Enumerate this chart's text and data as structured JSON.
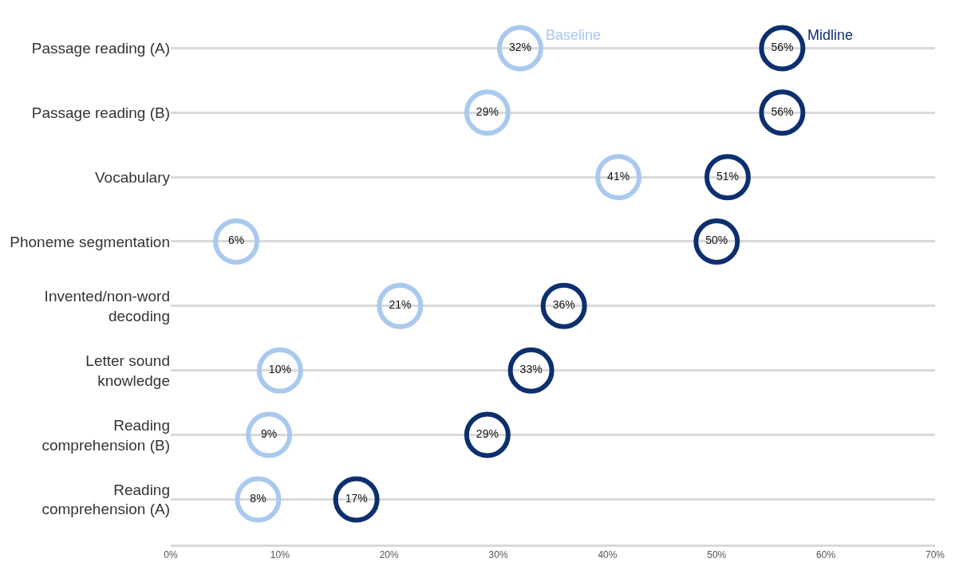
{
  "chart_data": {
    "type": "scatter",
    "orientation": "horizontal",
    "marker": "circle",
    "grid": "y",
    "legend": false,
    "categories": [
      "Passage reading (A)",
      "Passage reading (B)",
      "Vocabulary",
      "Phoneme segmentation",
      "Invented/non-word decoding",
      "Letter sound knowledge",
      "Reading comprehension (B)",
      "Reading comprehension (A)"
    ],
    "xlim": [
      0,
      70
    ],
    "xticks": [
      {
        "value": 0,
        "label": "0%"
      },
      {
        "value": 10,
        "label": "10%"
      },
      {
        "value": 20,
        "label": "20%"
      },
      {
        "value": 30,
        "label": "30%"
      },
      {
        "value": 40,
        "label": "40%"
      },
      {
        "value": 50,
        "label": "50%"
      },
      {
        "value": 60,
        "label": "60%"
      },
      {
        "value": 70,
        "label": "70%"
      }
    ],
    "series": [
      {
        "name": "Baseline",
        "color": "#a9c9ee",
        "values": [
          32,
          29,
          41,
          6,
          21,
          10,
          9,
          8
        ],
        "value_labels": [
          "32%",
          "29%",
          "41%",
          "6%",
          "21%",
          "10%",
          "9%",
          "8%"
        ]
      },
      {
        "name": "Midline",
        "color": "#0c2f6e",
        "values": [
          56,
          56,
          51,
          50,
          36,
          33,
          29,
          17
        ],
        "value_labels": [
          "56%",
          "56%",
          "51%",
          "50%",
          "36%",
          "33%",
          "29%",
          "17%"
        ]
      }
    ]
  }
}
